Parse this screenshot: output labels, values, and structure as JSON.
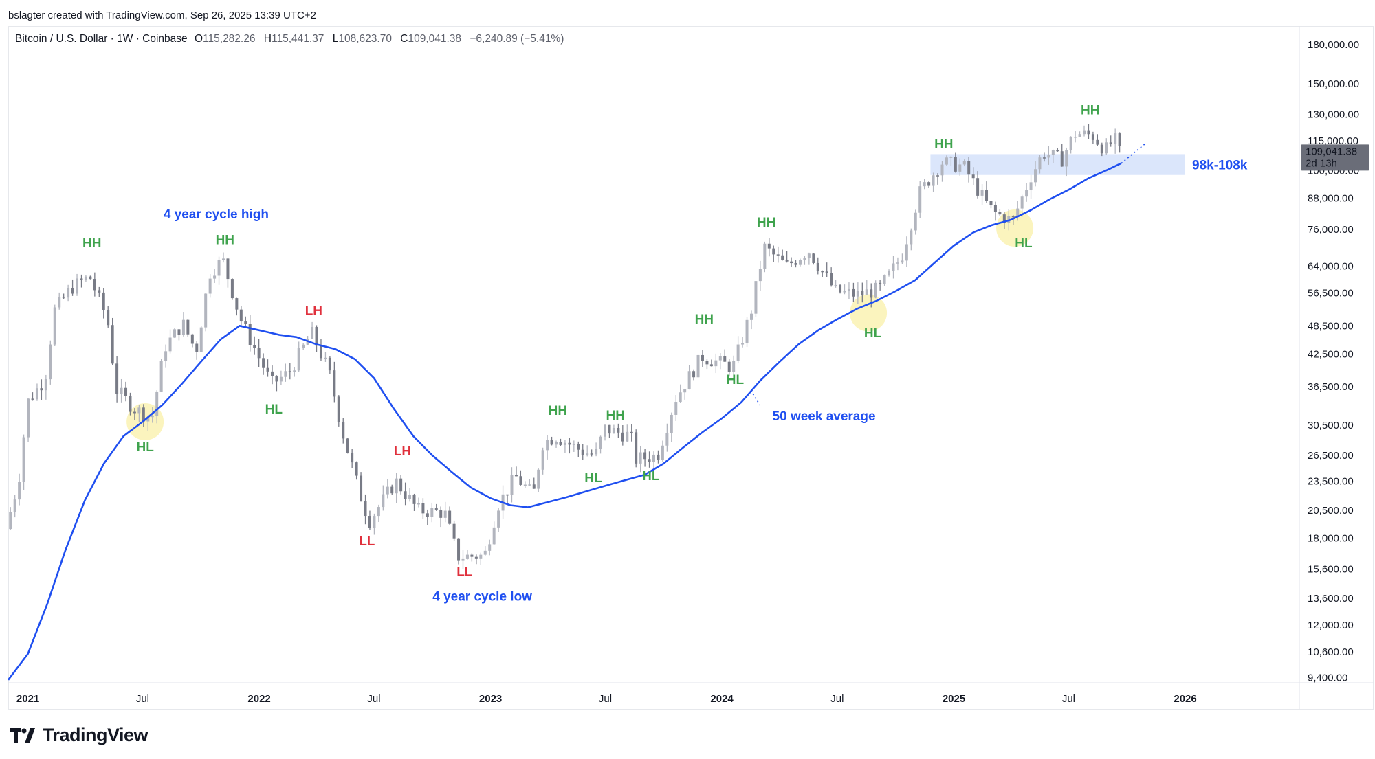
{
  "credit": "bslagter created with TradingView.com, Sep 26, 2025 13:39 UTC+2",
  "header": {
    "symbol": "Bitcoin / U.S. Dollar · 1W · Coinbase",
    "o_label": "O",
    "o": "115,282.26",
    "h_label": "H",
    "h": "115,441.37",
    "l_label": "L",
    "l": "108,623.70",
    "c_label": "C",
    "c": "109,041.38",
    "change": "−6,240.89 (−5.41%)"
  },
  "brand": "TradingView",
  "colors": {
    "up": "#b2b5be",
    "down": "#787b86",
    "ma": "#1f4ff0",
    "green": "#3fa34d",
    "red": "#e0303c",
    "blue_text": "#1f4ff0",
    "zone": "#dbe6fb",
    "highlight": "#fbf3b7",
    "price_tag": "#6a6d78"
  },
  "chart_data": {
    "type": "candlestick",
    "title": "Bitcoin / U.S. Dollar · 1W · Coinbase",
    "y_scale": "log",
    "ylim": [
      9000,
      195000
    ],
    "xlim": [
      "2020-12-01",
      "2026-06-30"
    ],
    "y_ticks": [
      "180,000.00",
      "150,000.00",
      "130,000.00",
      "115,000.00",
      "100,000.00",
      "88,000.00",
      "76,000.00",
      "64,000.00",
      "56,500.00",
      "48,500.00",
      "42,500.00",
      "36,500.00",
      "30,500.00",
      "26,500.00",
      "23,500.00",
      "20,500.00",
      "18,000.00",
      "15,600.00",
      "13,600.00",
      "12,000.00",
      "10,600.00",
      "9,400.00"
    ],
    "x_ticks": [
      {
        "label": "2021",
        "date": "2021-01-01",
        "bold": true
      },
      {
        "label": "Jul",
        "date": "2021-07-01",
        "bold": false
      },
      {
        "label": "2022",
        "date": "2022-01-01",
        "bold": true
      },
      {
        "label": "Jul",
        "date": "2022-07-01",
        "bold": false
      },
      {
        "label": "2023",
        "date": "2023-01-01",
        "bold": true
      },
      {
        "label": "Jul",
        "date": "2023-07-01",
        "bold": false
      },
      {
        "label": "2024",
        "date": "2024-01-01",
        "bold": true
      },
      {
        "label": "Jul",
        "date": "2024-07-01",
        "bold": false
      },
      {
        "label": "2025",
        "date": "2025-01-01",
        "bold": true
      },
      {
        "label": "Jul",
        "date": "2025-07-01",
        "bold": false
      },
      {
        "label": "2026",
        "date": "2026-01-01",
        "bold": true
      }
    ],
    "price_path": [
      [
        "2020-12-01",
        18800
      ],
      [
        "2020-12-21",
        23500
      ],
      [
        "2021-01-04",
        34000
      ],
      [
        "2021-02-01",
        38000
      ],
      [
        "2021-02-15",
        52000
      ],
      [
        "2021-03-15",
        58000
      ],
      [
        "2021-04-12",
        61000
      ],
      [
        "2021-05-10",
        50000
      ],
      [
        "2021-05-24",
        36000
      ],
      [
        "2021-06-21",
        33000
      ],
      [
        "2021-07-19",
        31500
      ],
      [
        "2021-08-09",
        44000
      ],
      [
        "2021-09-06",
        49000
      ],
      [
        "2021-09-27",
        43000
      ],
      [
        "2021-10-18",
        62000
      ],
      [
        "2021-11-08",
        66000
      ],
      [
        "2021-12-06",
        50000
      ],
      [
        "2022-01-24",
        37000
      ],
      [
        "2022-02-21",
        39000
      ],
      [
        "2022-03-28",
        47000
      ],
      [
        "2022-04-25",
        39000
      ],
      [
        "2022-05-16",
        29500
      ],
      [
        "2022-06-13",
        22000
      ],
      [
        "2022-06-27",
        19500
      ],
      [
        "2022-08-08",
        23500
      ],
      [
        "2022-09-12",
        20500
      ],
      [
        "2022-10-24",
        20300
      ],
      [
        "2022-11-14",
        16500
      ],
      [
        "2022-12-26",
        16600
      ],
      [
        "2023-01-16",
        21000
      ],
      [
        "2023-02-13",
        24000
      ],
      [
        "2023-03-13",
        22000
      ],
      [
        "2023-03-27",
        28000
      ],
      [
        "2023-04-17",
        29000
      ],
      [
        "2023-05-29",
        27000
      ],
      [
        "2023-06-19",
        26500
      ],
      [
        "2023-07-03",
        30000
      ],
      [
        "2023-08-14",
        29000
      ],
      [
        "2023-08-21",
        26000
      ],
      [
        "2023-09-25",
        26500
      ],
      [
        "2023-10-23",
        34500
      ],
      [
        "2023-12-04",
        42000
      ],
      [
        "2024-01-22",
        40000
      ],
      [
        "2024-02-19",
        51500
      ],
      [
        "2024-03-11",
        70000
      ],
      [
        "2024-04-15",
        64000
      ],
      [
        "2024-05-20",
        69000
      ],
      [
        "2024-07-01",
        57000
      ],
      [
        "2024-08-05",
        56000
      ],
      [
        "2024-09-09",
        57500
      ],
      [
        "2024-10-14",
        67000
      ],
      [
        "2024-11-11",
        90000
      ],
      [
        "2024-12-16",
        104000
      ],
      [
        "2025-01-20",
        102000
      ],
      [
        "2025-02-24",
        86000
      ],
      [
        "2025-03-10",
        82000
      ],
      [
        "2025-04-07",
        79000
      ],
      [
        "2025-05-05",
        97000
      ],
      [
        "2025-05-26",
        109000
      ],
      [
        "2025-06-23",
        105000
      ],
      [
        "2025-07-14",
        119000
      ],
      [
        "2025-08-11",
        118000
      ],
      [
        "2025-09-01",
        110000
      ],
      [
        "2025-09-15",
        116000
      ],
      [
        "2025-09-22",
        109041
      ]
    ],
    "ma_50w": [
      [
        "2020-12-01",
        9300
      ],
      [
        "2021-01-01",
        10500
      ],
      [
        "2021-02-01",
        13300
      ],
      [
        "2021-03-01",
        17000
      ],
      [
        "2021-04-01",
        21500
      ],
      [
        "2021-05-01",
        25500
      ],
      [
        "2021-06-01",
        29000
      ],
      [
        "2021-07-01",
        31000
      ],
      [
        "2021-08-01",
        33500
      ],
      [
        "2021-09-01",
        37000
      ],
      [
        "2021-10-01",
        41000
      ],
      [
        "2021-11-01",
        45500
      ],
      [
        "2021-12-01",
        48500
      ],
      [
        "2022-01-01",
        47500
      ],
      [
        "2022-02-01",
        46500
      ],
      [
        "2022-03-01",
        46000
      ],
      [
        "2022-04-01",
        44500
      ],
      [
        "2022-05-01",
        43500
      ],
      [
        "2022-06-01",
        41500
      ],
      [
        "2022-07-01",
        38000
      ],
      [
        "2022-08-01",
        33000
      ],
      [
        "2022-09-01",
        29000
      ],
      [
        "2022-10-01",
        26500
      ],
      [
        "2022-11-01",
        24500
      ],
      [
        "2022-12-01",
        22800
      ],
      [
        "2023-01-01",
        21700
      ],
      [
        "2023-02-01",
        21000
      ],
      [
        "2023-03-01",
        20800
      ],
      [
        "2023-04-01",
        21300
      ],
      [
        "2023-05-01",
        21800
      ],
      [
        "2023-06-01",
        22400
      ],
      [
        "2023-07-01",
        23000
      ],
      [
        "2023-08-01",
        23600
      ],
      [
        "2023-09-01",
        24200
      ],
      [
        "2023-10-01",
        25500
      ],
      [
        "2023-11-01",
        27500
      ],
      [
        "2023-12-01",
        29500
      ],
      [
        "2024-01-01",
        31500
      ],
      [
        "2024-02-01",
        34000
      ],
      [
        "2024-03-01",
        37500
      ],
      [
        "2024-04-01",
        41000
      ],
      [
        "2024-05-01",
        44500
      ],
      [
        "2024-06-01",
        47500
      ],
      [
        "2024-07-01",
        50000
      ],
      [
        "2024-08-01",
        52500
      ],
      [
        "2024-09-01",
        54500
      ],
      [
        "2024-10-01",
        57000
      ],
      [
        "2024-11-01",
        60000
      ],
      [
        "2024-12-01",
        65000
      ],
      [
        "2025-01-01",
        70500
      ],
      [
        "2025-02-01",
        75000
      ],
      [
        "2025-03-01",
        77500
      ],
      [
        "2025-04-01",
        79500
      ],
      [
        "2025-05-01",
        83000
      ],
      [
        "2025-06-01",
        87500
      ],
      [
        "2025-07-01",
        91500
      ],
      [
        "2025-08-01",
        96500
      ],
      [
        "2025-09-01",
        100500
      ],
      [
        "2025-09-22",
        103500
      ]
    ],
    "ma_projection": [
      [
        "2025-09-22",
        103500
      ],
      [
        "2025-11-01",
        114000
      ]
    ],
    "zone": {
      "from": "2024-11-25",
      "to": "2025-12-31",
      "low": 98000,
      "high": 108000,
      "label": "98k-108k"
    },
    "highlights": [
      {
        "date": "2021-07-05",
        "price": 31000
      },
      {
        "date": "2024-08-19",
        "price": 51500
      },
      {
        "date": "2025-04-07",
        "price": 76500
      }
    ],
    "last_price": {
      "value": "109,041.38",
      "countdown": "2d 13h",
      "price": 109041.38
    },
    "annotations": [
      {
        "text": "HH",
        "date": "2021-04-12",
        "price": 70000,
        "color": "green"
      },
      {
        "text": "HL",
        "date": "2021-07-05",
        "price": 27000,
        "color": "green"
      },
      {
        "text": "HH",
        "date": "2021-11-08",
        "price": 71000,
        "color": "green"
      },
      {
        "text": "4 year cycle high",
        "date": "2021-10-25",
        "price": 80000,
        "color": "blue_text"
      },
      {
        "text": "HL",
        "date": "2022-01-24",
        "price": 32200,
        "color": "green"
      },
      {
        "text": "LH",
        "date": "2022-03-28",
        "price": 51000,
        "color": "red"
      },
      {
        "text": "LL",
        "date": "2022-06-20",
        "price": 17400,
        "color": "red"
      },
      {
        "text": "LH",
        "date": "2022-08-15",
        "price": 26500,
        "color": "red"
      },
      {
        "text": "LL",
        "date": "2022-11-21",
        "price": 15100,
        "color": "red"
      },
      {
        "text": "4 year cycle low",
        "date": "2022-12-19",
        "price": 13450,
        "color": "blue_text"
      },
      {
        "text": "HH",
        "date": "2023-04-17",
        "price": 32000,
        "color": "green"
      },
      {
        "text": "HL",
        "date": "2023-06-12",
        "price": 23400,
        "color": "green"
      },
      {
        "text": "HH",
        "date": "2023-07-17",
        "price": 31300,
        "color": "green"
      },
      {
        "text": "HL",
        "date": "2023-09-11",
        "price": 23600,
        "color": "green"
      },
      {
        "text": "HH",
        "date": "2023-12-04",
        "price": 49000,
        "color": "green"
      },
      {
        "text": "HL",
        "date": "2024-01-22",
        "price": 37000,
        "color": "green"
      },
      {
        "text": "HH",
        "date": "2024-03-11",
        "price": 77000,
        "color": "green"
      },
      {
        "text": "50 week average",
        "date": "2024-06-10",
        "price": 31200,
        "color": "blue_text"
      },
      {
        "text": "HL",
        "date": "2024-08-26",
        "price": 46000,
        "color": "green"
      },
      {
        "text": "HH",
        "date": "2024-12-16",
        "price": 111000,
        "color": "green"
      },
      {
        "text": "HL",
        "date": "2025-04-21",
        "price": 70000,
        "color": "green"
      },
      {
        "text": "HH",
        "date": "2025-08-04",
        "price": 130000,
        "color": "green"
      }
    ]
  }
}
